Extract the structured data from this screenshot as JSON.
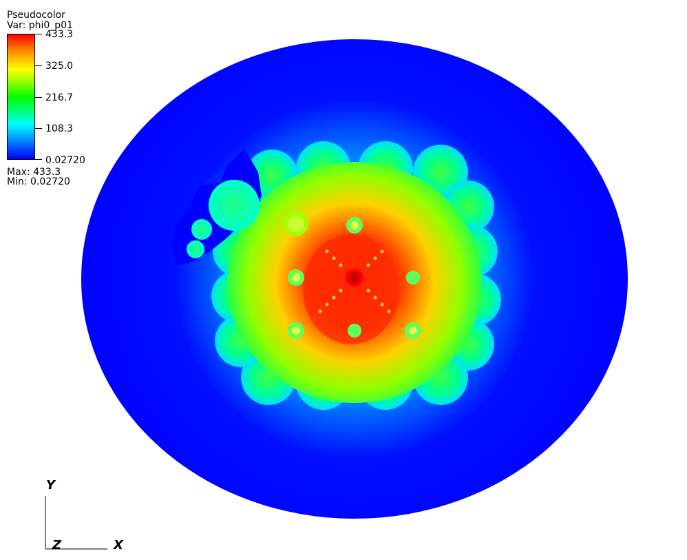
{
  "legend": {
    "title": "Pseudocolor",
    "variable": "Var: phi0_p01",
    "ticks": [
      "433.3",
      "325.0",
      "216.7",
      "108.3",
      "0.02720"
    ],
    "max_label": "Max:  433.3",
    "min_label": "Min:  0.02720",
    "colormap": [
      "#0000ff",
      "#00ffff",
      "#00ff00",
      "#ffff00",
      "#ff0000"
    ]
  },
  "axes": {
    "y_label": "Y",
    "z_label": "Z",
    "x_label": "X"
  },
  "chart_data": {
    "type": "heatmap",
    "title": "",
    "variable": "phi0_p01",
    "value_range": [
      0.0272,
      433.3
    ],
    "colorbar_ticks": [
      433.3,
      325.0,
      216.7,
      108.3,
      0.0272
    ],
    "max": 433.3,
    "min": 0.0272
  }
}
